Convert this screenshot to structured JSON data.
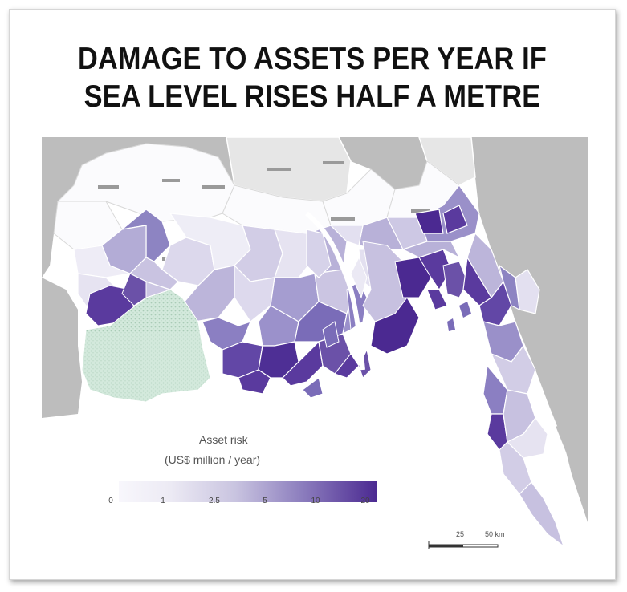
{
  "title": {
    "line1": "DAMAGE TO ASSETS PER YEAR IF",
    "line2": "SEA LEVEL RISES HALF A METRE"
  },
  "legend": {
    "title": "Asset risk",
    "unit": "(US$ million / year)",
    "ticks": [
      "0",
      "1",
      "2.5",
      "5",
      "10",
      "20"
    ],
    "color_low": "#f4f2fa",
    "color_high": "#4b2991"
  },
  "scale_bar": {
    "mid_label": "25",
    "end_label": "50 km"
  },
  "colors": {
    "land_outside": "#b8b8b8",
    "sea": "#ffffff",
    "forest": "#cfe6d8",
    "district_border": "#ffffff"
  }
}
